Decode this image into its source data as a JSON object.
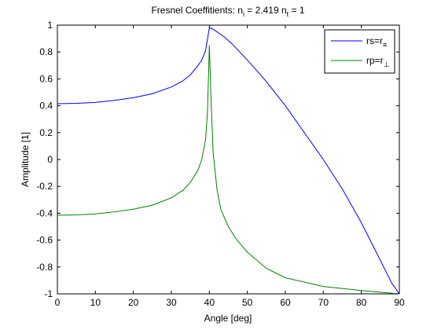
{
  "chart_data": {
    "type": "line",
    "title": {
      "prefix": "Fresnel Coeffitients: n",
      "sub1": "i",
      "middle": " = 2.419 n",
      "sub2": "t",
      "suffix": " = 1"
    },
    "xlabel": "Angle [deg]",
    "ylabel": "Amplitude [1]",
    "xlim": [
      0,
      90
    ],
    "ylim": [
      -1,
      1
    ],
    "xticks": [
      0,
      10,
      20,
      30,
      40,
      50,
      60,
      70,
      80,
      90
    ],
    "yticks": [
      -1,
      -0.8,
      -0.6,
      -0.4,
      -0.2,
      0,
      0.2,
      0.4,
      0.6,
      0.8,
      1
    ],
    "ytick_labels": [
      "-1",
      "-0.8",
      "-0.6",
      "-0.4",
      "-0.2",
      "0",
      "0.2",
      "0.4",
      "0.6",
      "0.8",
      "1"
    ],
    "grid": false,
    "legend_position": "top-right",
    "series": [
      {
        "name": "rs",
        "legend": {
          "text": "rs=r",
          "sub": "≡"
        },
        "color": "#0000ff",
        "x": [
          0,
          5,
          10,
          15,
          20,
          25,
          30,
          33,
          35,
          37,
          38,
          39,
          40,
          41,
          42,
          44,
          46,
          48,
          50,
          55,
          60,
          65,
          70,
          75,
          80,
          85,
          88,
          90
        ],
        "y": [
          0.415,
          0.418,
          0.425,
          0.44,
          0.46,
          0.49,
          0.54,
          0.585,
          0.63,
          0.7,
          0.74,
          0.81,
          0.98,
          0.97,
          0.95,
          0.91,
          0.86,
          0.8,
          0.74,
          0.58,
          0.4,
          0.2,
          0.0,
          -0.22,
          -0.47,
          -0.75,
          -0.92,
          -1.0
        ]
      },
      {
        "name": "rp",
        "legend": {
          "text": "rp=r",
          "sub": "⊥"
        },
        "color": "#008000",
        "x": [
          0,
          5,
          10,
          15,
          20,
          25,
          30,
          33,
          35,
          37,
          38,
          39,
          39.5,
          40,
          40.5,
          41,
          42,
          43,
          45,
          47,
          50,
          55,
          60,
          70,
          80,
          90
        ],
        "y": [
          -0.415,
          -0.412,
          -0.405,
          -0.39,
          -0.37,
          -0.34,
          -0.285,
          -0.23,
          -0.17,
          -0.08,
          0.0,
          0.15,
          0.35,
          0.85,
          0.4,
          0.05,
          -0.22,
          -0.37,
          -0.5,
          -0.59,
          -0.69,
          -0.81,
          -0.88,
          -0.945,
          -0.975,
          -1.0
        ]
      }
    ]
  }
}
